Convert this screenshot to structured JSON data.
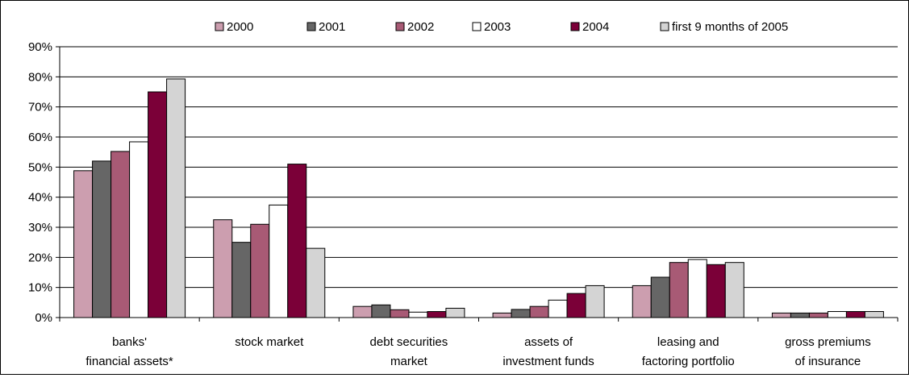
{
  "chart_data": {
    "type": "bar",
    "title": "",
    "xlabel": "",
    "ylabel": "",
    "ylim": [
      0,
      90
    ],
    "y_ticks": [
      "0%",
      "10%",
      "20%",
      "30%",
      "40%",
      "50%",
      "60%",
      "70%",
      "80%",
      "90%"
    ],
    "y_tick_values": [
      0,
      10,
      20,
      30,
      40,
      50,
      60,
      70,
      80,
      90
    ],
    "grid": "horizontal",
    "legend_position": "top",
    "categories": [
      [
        "banks'",
        "financial assets*"
      ],
      [
        "stock market"
      ],
      [
        "debt securities",
        "market"
      ],
      [
        "assets of",
        "investment funds"
      ],
      [
        "leasing and",
        "factoring portfolio"
      ],
      [
        "gross premiums",
        "of insurance"
      ]
    ],
    "series": [
      {
        "name": "2000",
        "color": "#cc9eaf",
        "values": [
          48.8,
          32.5,
          3.7,
          1.5,
          10.6,
          1.5
        ]
      },
      {
        "name": "2001",
        "color": "#666666",
        "values": [
          52.0,
          25.0,
          4.2,
          2.7,
          13.4,
          1.5
        ]
      },
      {
        "name": "2002",
        "color": "#a85a75",
        "values": [
          55.2,
          31.0,
          2.6,
          3.7,
          18.3,
          1.5
        ]
      },
      {
        "name": "2003",
        "color": "#ffffff",
        "values": [
          58.4,
          37.4,
          1.8,
          5.8,
          19.3,
          2.0
        ]
      },
      {
        "name": "2004",
        "color": "#7b0038",
        "values": [
          75.0,
          51.0,
          2.0,
          8.0,
          17.6,
          2.0
        ]
      },
      {
        "name": "first 9 months of 2005",
        "color": "#d4d4d4",
        "values": [
          79.3,
          23.0,
          3.1,
          10.6,
          18.3,
          2.0
        ]
      }
    ]
  }
}
